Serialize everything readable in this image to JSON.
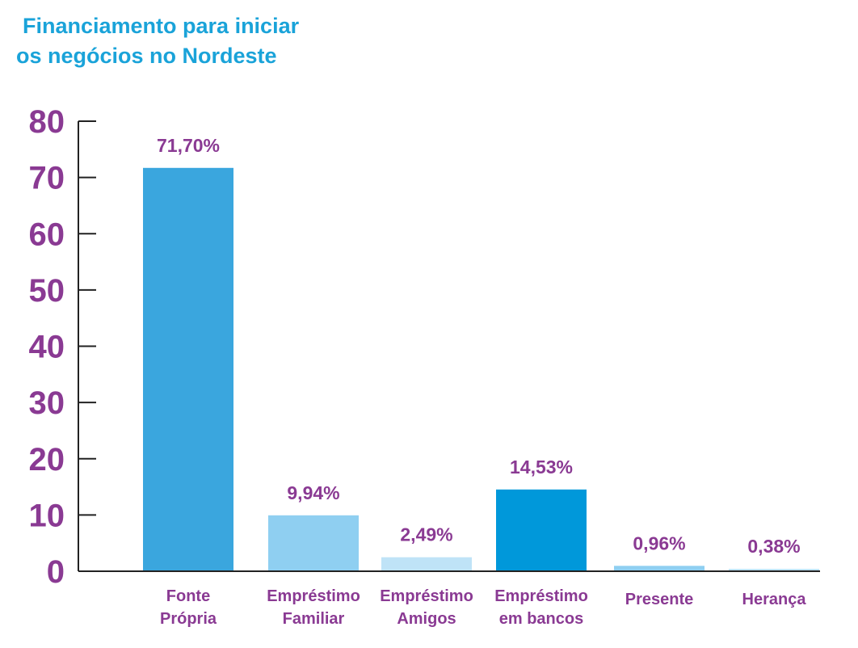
{
  "chart_data": {
    "type": "bar",
    "title_lines": [
      "Financiamento para iniciar",
      "os negócios no Nordeste"
    ],
    "categories": [
      [
        "Fonte",
        "Própria"
      ],
      [
        "Empréstimo",
        "Familiar"
      ],
      [
        "Empréstimo",
        "Amigos"
      ],
      [
        "Empréstimo",
        "em bancos"
      ],
      [
        "Presente"
      ],
      [
        "Herança"
      ]
    ],
    "values": [
      71.7,
      9.94,
      2.49,
      14.53,
      0.96,
      0.38
    ],
    "data_labels": [
      "71,70%",
      "9,94%",
      "2,49%",
      "14,53%",
      "0,96%",
      "0,38%"
    ],
    "bar_colors": [
      "#3aa6de",
      "#8fcff1",
      "#bfe3f7",
      "#0098da",
      "#8fcff1",
      "#bfe3f7"
    ],
    "yticks": [
      0,
      10,
      20,
      30,
      40,
      50,
      60,
      70,
      80
    ],
    "ylim": [
      0,
      80
    ],
    "xlabel": "",
    "ylabel": "",
    "grid": false,
    "legend": "none",
    "colors": {
      "title": "#1aa3d9",
      "text": "#8a3a93",
      "axis": "#222222"
    }
  }
}
